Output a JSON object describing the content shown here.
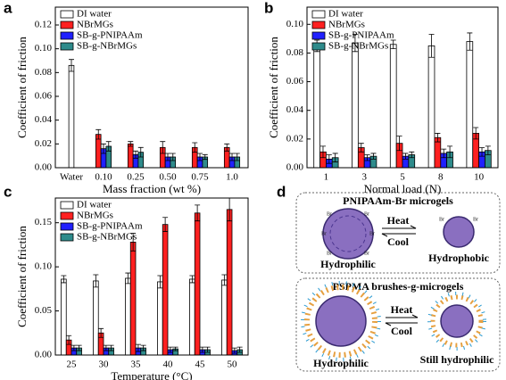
{
  "panel_labels": [
    "a",
    "b",
    "c",
    "d"
  ],
  "chart_data": [
    {
      "type": "bar",
      "ylabel": "Coefficient of friction",
      "xlabel": "Mass fraction (wt %)",
      "legend": "upper left",
      "categories": [
        "Water",
        "0.10",
        "0.25",
        "0.50",
        "0.75",
        "1.0"
      ],
      "ylim": [
        0,
        0.135
      ],
      "yticks": [
        {
          "value": 0,
          "label": "0.00"
        },
        {
          "value": 0.02,
          "label": "0.02"
        },
        {
          "value": 0.04,
          "label": "0.04"
        },
        {
          "value": 0.06,
          "label": "0.06"
        },
        {
          "value": 0.08,
          "label": "0.08"
        },
        {
          "value": 0.1,
          "label": "0.10"
        },
        {
          "value": 0.12,
          "label": "0.12"
        }
      ],
      "series": [
        {
          "name": "DI water",
          "color": "#ffffff",
          "values": [
            0.086,
            null,
            null,
            null,
            null,
            null
          ],
          "errors": [
            0.005,
            null,
            null,
            null,
            null,
            null
          ]
        },
        {
          "name": "NBrMGs",
          "color": "#ff2020",
          "values": [
            null,
            0.028,
            0.02,
            0.017,
            0.017,
            0.017
          ],
          "errors": [
            null,
            0.004,
            0.002,
            0.005,
            0.004,
            0.003
          ]
        },
        {
          "name": "SB-g-PNIPAAm",
          "color": "#2020ff",
          "values": [
            null,
            0.016,
            0.011,
            0.009,
            0.009,
            0.009
          ],
          "errors": [
            null,
            0.004,
            0.003,
            0.003,
            0.003,
            0.003
          ]
        },
        {
          "name": "SB-g-NBrMGs",
          "color": "#2e8b8b",
          "values": [
            null,
            0.018,
            0.013,
            0.009,
            0.009,
            0.009
          ],
          "errors": [
            null,
            0.004,
            0.004,
            0.003,
            0.002,
            0.003
          ]
        }
      ]
    },
    {
      "type": "bar",
      "ylabel": "Coefficient of friction",
      "xlabel": "Normal load (N)",
      "legend": "upper left",
      "categories": [
        "1",
        "3",
        "5",
        "8",
        "10"
      ],
      "ylim": [
        0,
        0.112
      ],
      "yticks": [
        {
          "value": 0,
          "label": "0.00"
        },
        {
          "value": 0.02,
          "label": "0.02"
        },
        {
          "value": 0.04,
          "label": "0.04"
        },
        {
          "value": 0.06,
          "label": "0.06"
        },
        {
          "value": 0.08,
          "label": "0.08"
        },
        {
          "value": 0.1,
          "label": "0.10"
        }
      ],
      "series": [
        {
          "name": "DI water",
          "color": "#ffffff",
          "values": [
            0.085,
            0.087,
            0.086,
            0.085,
            0.088
          ],
          "errors": [
            0.004,
            0.006,
            0.003,
            0.008,
            0.006
          ]
        },
        {
          "name": "NBrMGs",
          "color": "#ff2020",
          "values": [
            0.011,
            0.014,
            0.017,
            0.021,
            0.024
          ],
          "errors": [
            0.004,
            0.003,
            0.005,
            0.003,
            0.004
          ]
        },
        {
          "name": "SB-g-PNIPAAm",
          "color": "#2020ff",
          "values": [
            0.006,
            0.007,
            0.008,
            0.01,
            0.011
          ],
          "errors": [
            0.003,
            0.002,
            0.002,
            0.003,
            0.003
          ]
        },
        {
          "name": "SB-g-NBrMGs",
          "color": "#2e8b8b",
          "values": [
            0.007,
            0.008,
            0.009,
            0.011,
            0.012
          ],
          "errors": [
            0.003,
            0.002,
            0.002,
            0.004,
            0.003
          ]
        }
      ]
    },
    {
      "type": "bar",
      "ylabel": "Coefficient of friction",
      "xlabel": "Temperature (°C)",
      "legend": "upper left",
      "categories": [
        "25",
        "30",
        "35",
        "40",
        "45",
        "50"
      ],
      "ylim": [
        0,
        0.178
      ],
      "yticks": [
        {
          "value": 0,
          "label": "0.00"
        },
        {
          "value": 0.05,
          "label": "0.05"
        },
        {
          "value": 0.1,
          "label": "0.10"
        },
        {
          "value": 0.15,
          "label": "0.15"
        }
      ],
      "series": [
        {
          "name": "DI water",
          "color": "#ffffff",
          "values": [
            0.086,
            0.084,
            0.087,
            0.083,
            0.086,
            0.085
          ],
          "errors": [
            0.004,
            0.007,
            0.006,
            0.007,
            0.004,
            0.006
          ]
        },
        {
          "name": "NBrMGs",
          "color": "#ff2020",
          "values": [
            0.017,
            0.025,
            0.128,
            0.148,
            0.161,
            0.165
          ],
          "errors": [
            0.005,
            0.005,
            0.01,
            0.008,
            0.009,
            0.013
          ]
        },
        {
          "name": "SB-g-PNIPAAm",
          "color": "#2020ff",
          "values": [
            0.008,
            0.008,
            0.008,
            0.006,
            0.006,
            0.005
          ],
          "errors": [
            0.003,
            0.003,
            0.004,
            0.003,
            0.003,
            0.003
          ]
        },
        {
          "name": "SB-g-NBrMGs",
          "color": "#2e8b8b",
          "values": [
            0.008,
            0.008,
            0.008,
            0.007,
            0.006,
            0.006
          ],
          "errors": [
            0.003,
            0.003,
            0.003,
            0.002,
            0.003,
            0.003
          ]
        }
      ]
    }
  ],
  "diagram": {
    "top_title": "PNIPAAm-Br microgels",
    "heat": "Heat",
    "cool": "Cool",
    "top_left": "Hydrophilic",
    "top_right": "Hydrophobic",
    "bottom_title": "PSPMA brushes-g-microgels",
    "bottom_left": "Hydrophilic",
    "bottom_right": "Still hydrophilic",
    "br": "Br"
  }
}
